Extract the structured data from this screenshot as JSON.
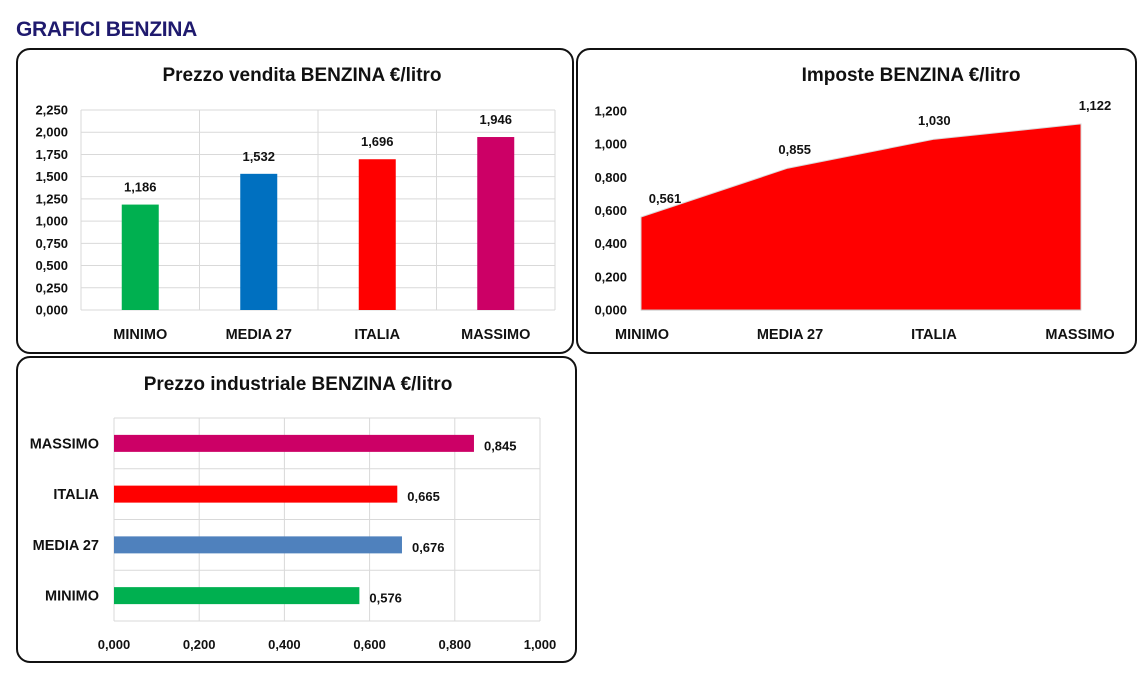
{
  "page": {
    "title": "GRAFICI BENZINA"
  },
  "colors": {
    "minimo": "#00b050",
    "media": "#0070c0",
    "italia": "#ff0000",
    "massimo": "#cc0066",
    "media_industrial": "#4f81bd",
    "area": "#ff0000",
    "grid": "#d9d9d9"
  },
  "chart_data": [
    {
      "id": "vendita",
      "type": "bar",
      "title": "Prezzo vendita BENZINA €/litro",
      "categories": [
        "MINIMO",
        "MEDIA 27",
        "ITALIA",
        "MASSIMO"
      ],
      "values": [
        1.186,
        1.532,
        1.696,
        1.946
      ],
      "value_labels": [
        "1,186",
        "1,532",
        "1,696",
        "1,946"
      ],
      "bar_colors": [
        "#00b050",
        "#0070c0",
        "#ff0000",
        "#cc0066"
      ],
      "ylim": [
        0,
        2.25
      ],
      "yticks": [
        0,
        0.25,
        0.5,
        0.75,
        1.0,
        1.25,
        1.5,
        1.75,
        2.0,
        2.25
      ],
      "ytick_labels": [
        "0,000",
        "0,250",
        "0,500",
        "0,750",
        "1,000",
        "1,250",
        "1,500",
        "1,750",
        "2,000",
        "2,250"
      ],
      "grid": true
    },
    {
      "id": "imposte",
      "type": "area",
      "title": "Imposte BENZINA €/litro",
      "categories": [
        "MINIMO",
        "MEDIA 27",
        "ITALIA",
        "MASSIMO"
      ],
      "values": [
        0.561,
        0.855,
        1.03,
        1.122
      ],
      "value_labels": [
        "0,561",
        "0,855",
        "1,030",
        "1,122"
      ],
      "fill_color": "#ff0000",
      "ylim": [
        0,
        1.2
      ],
      "yticks": [
        0,
        0.2,
        0.4,
        0.6,
        0.8,
        1.0,
        1.2
      ],
      "ytick_labels": [
        "0,000",
        "0,200",
        "0,400",
        "0,600",
        "0,800",
        "1,000",
        "1,200"
      ],
      "grid": false
    },
    {
      "id": "industriale",
      "type": "bar",
      "orientation": "horizontal",
      "title": "Prezzo industriale BENZINA €/litro",
      "categories": [
        "MINIMO",
        "MEDIA 27",
        "ITALIA",
        "MASSIMO"
      ],
      "values": [
        0.576,
        0.676,
        0.665,
        0.845
      ],
      "value_labels": [
        "0,576",
        "0,676",
        "0,665",
        "0,845"
      ],
      "bar_colors": [
        "#00b050",
        "#4f81bd",
        "#ff0000",
        "#cc0066"
      ],
      "xlim": [
        0,
        1.0
      ],
      "xticks": [
        0,
        0.2,
        0.4,
        0.6,
        0.8,
        1.0
      ],
      "xtick_labels": [
        "0,000",
        "0,200",
        "0,400",
        "0,600",
        "0,800",
        "1,000"
      ],
      "grid": true
    }
  ]
}
